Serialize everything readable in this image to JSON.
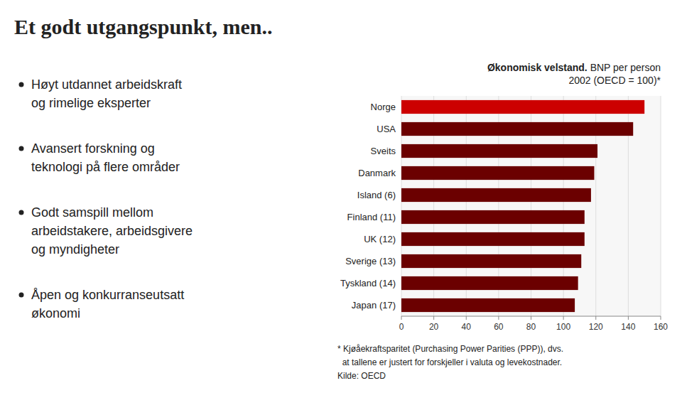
{
  "title": "Et godt utgangspunkt, men..",
  "bullet_points": [
    "Høyt utdannet arbeidskraft\nog rimelige eksperter",
    "Avansert forskning og\nteknologi på flere områder",
    "Godt samspill mellom\narbeidstakere, arbeidsgivere\nog myndigheter",
    "Åpen og konkurranseutsatt\nøkonomi"
  ],
  "chart_data": {
    "type": "bar",
    "orientation": "horizontal",
    "title": "Økonomisk velstand.",
    "subtitle": " BNP per person\n2002 (OECD = 100)*",
    "categories": [
      "Norge",
      "USA",
      "Sveits",
      "Danmark",
      "Island (6)",
      "Finland (11)",
      "UK (12)",
      "Sverige (13)",
      "Tyskland (14)",
      "Japan (17)"
    ],
    "values": [
      150,
      143,
      121,
      119,
      117,
      113,
      113,
      111,
      109,
      107
    ],
    "colors": [
      "#CC0000",
      "#6B0000",
      "#6B0000",
      "#6B0000",
      "#6B0000",
      "#6B0000",
      "#6B0000",
      "#6B0000",
      "#6B0000",
      "#6B0000"
    ],
    "xlim": [
      0,
      160
    ],
    "xticks": [
      0,
      20,
      40,
      60,
      80,
      100,
      120,
      140,
      160
    ],
    "grid": true,
    "annotations": [
      "* Kjøåekraftsparitet (Purchasing Power Parities (PPP)), dvs.",
      "  at tallene er justert for forskjeller i valuta og levekostnader.",
      "Kilde: OECD"
    ]
  }
}
